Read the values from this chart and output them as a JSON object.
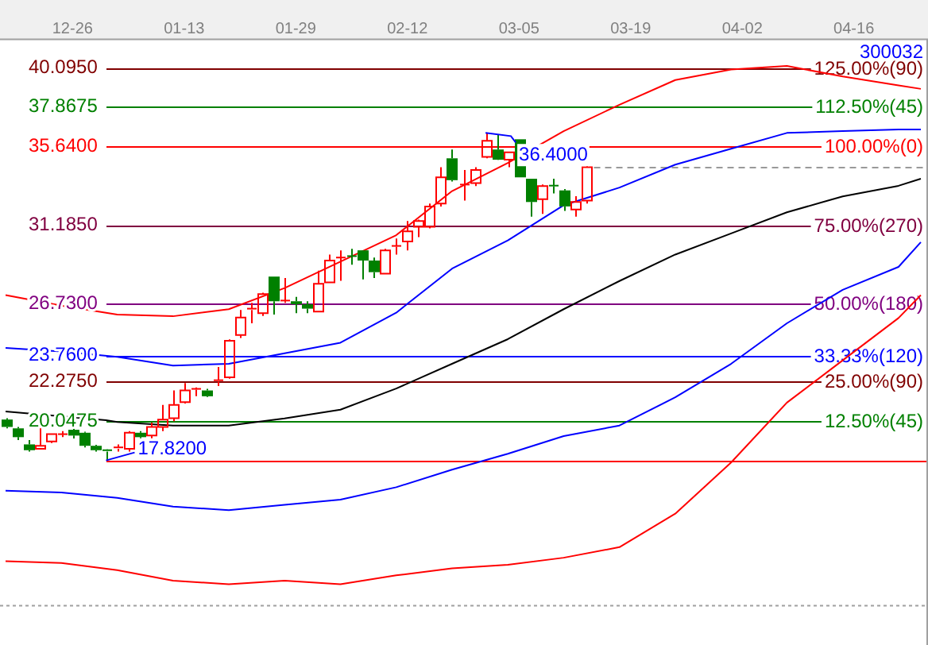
{
  "chart_data": {
    "type": "candlestick",
    "title": "300032",
    "categories": [
      null,
      null,
      null,
      null,
      null,
      null,
      "12-26",
      null,
      null,
      null,
      null,
      null,
      null,
      null,
      null,
      null,
      "01-13",
      null,
      null,
      null,
      null,
      null,
      null,
      null,
      null,
      null,
      "01-29",
      null,
      null,
      null,
      null,
      null,
      null,
      null,
      null,
      null,
      "02-12",
      null,
      null,
      null,
      null,
      null,
      null,
      null,
      null,
      null,
      "03-05",
      null,
      null,
      null,
      null,
      null,
      null,
      null,
      null,
      null,
      "03-19",
      null,
      null,
      null,
      null,
      null,
      null,
      null,
      null,
      null,
      "04-02",
      null,
      null,
      null,
      null,
      null,
      null,
      null,
      null,
      null,
      "04-16",
      null,
      null,
      null,
      null,
      null,
      null
    ],
    "ohlc": [
      [
        20.14,
        20.22,
        19.64,
        19.72
      ],
      [
        19.64,
        19.72,
        18.98,
        19.14
      ],
      [
        18.73,
        18.98,
        18.32,
        18.4
      ],
      [
        18.48,
        19.72,
        18.48,
        18.65
      ],
      [
        18.9,
        19.31,
        18.81,
        19.31
      ],
      [
        19.28,
        19.48,
        19.14,
        19.31
      ],
      [
        19.56,
        19.81,
        19.06,
        19.23
      ],
      [
        19.39,
        19.45,
        18.56,
        18.65
      ],
      [
        18.65,
        18.7,
        18.32,
        18.4
      ],
      [
        18.4,
        18.45,
        17.82,
        18.32
      ],
      [
        18.48,
        18.73,
        18.32,
        18.56
      ],
      [
        18.48,
        19.48,
        18.32,
        19.39
      ],
      [
        19.39,
        19.48,
        18.98,
        19.14
      ],
      [
        19.23,
        19.97,
        18.98,
        19.72
      ],
      [
        19.72,
        20.97,
        19.48,
        20.14
      ],
      [
        20.22,
        21.79,
        20.05,
        20.97
      ],
      [
        21.13,
        22.21,
        21.05,
        21.79
      ],
      [
        21.84,
        21.96,
        21.46,
        21.88
      ],
      [
        21.79,
        21.88,
        21.42,
        21.46
      ],
      [
        22.29,
        23.12,
        22.04,
        22.37
      ],
      [
        22.54,
        24.69,
        22.46,
        24.61
      ],
      [
        24.94,
        26.35,
        24.77,
        25.93
      ],
      [
        26.35,
        26.76,
        25.6,
        26.43
      ],
      [
        26.18,
        27.34,
        26.02,
        27.26
      ],
      [
        28.25,
        28.25,
        26.1,
        26.85
      ],
      [
        26.85,
        28.17,
        26.76,
        26.89
      ],
      [
        26.85,
        27.1,
        26.18,
        26.68
      ],
      [
        26.68,
        26.85,
        26.18,
        26.43
      ],
      [
        26.27,
        28.58,
        26.27,
        27.84
      ],
      [
        27.92,
        29.5,
        27.92,
        29.16
      ],
      [
        29.29,
        29.74,
        28.01,
        29.33
      ],
      [
        29.41,
        29.83,
        28.92,
        29.38
      ],
      [
        29.74,
        29.74,
        28.09,
        29.16
      ],
      [
        29.16,
        29.33,
        28.17,
        28.5
      ],
      [
        28.42,
        29.83,
        28.42,
        29.74
      ],
      [
        29.95,
        30.41,
        29.5,
        29.99
      ],
      [
        30.24,
        31.4,
        29.74,
        30.82
      ],
      [
        31.07,
        31.48,
        30.49,
        31.4
      ],
      [
        31.07,
        32.39,
        30.99,
        32.23
      ],
      [
        32.39,
        34.46,
        32.23,
        33.88
      ],
      [
        34.96,
        35.46,
        33.64,
        33.72
      ],
      [
        33.44,
        34.3,
        32.56,
        33.47
      ],
      [
        33.55,
        34.46,
        33.39,
        34.3
      ],
      [
        35.04,
        36.4,
        34.96,
        35.95
      ],
      [
        35.46,
        36.29,
        34.87,
        34.88
      ],
      [
        34.88,
        35.3,
        34.46,
        35.3
      ],
      [
        36.04,
        36.04,
        33.88,
        33.88
      ],
      [
        33.8,
        33.8,
        31.65,
        32.48
      ],
      [
        32.64,
        33.47,
        31.81,
        33.39
      ],
      [
        33.41,
        33.8,
        32.97,
        33.37
      ],
      [
        33.14,
        33.22,
        31.98,
        32.23
      ],
      [
        32.06,
        32.81,
        31.65,
        32.48
      ],
      [
        32.56,
        34.8,
        32.39,
        34.46
      ],
      null,
      null,
      null,
      null,
      null,
      null,
      null,
      null,
      null,
      null,
      null,
      null,
      null,
      null,
      null,
      null,
      null,
      null,
      null,
      null,
      null,
      null,
      null,
      null,
      null,
      null,
      null,
      null,
      null,
      null
    ],
    "colors": [
      "#008000",
      "#008000",
      "#008000",
      "#ff0000",
      "#ff0000",
      "#ff0000",
      "#008000",
      "#008000",
      "#008000",
      "#008000",
      "#ff0000",
      "#ff0000",
      "#008000",
      "#ff0000",
      "#ff0000",
      "#ff0000",
      "#ff0000",
      "#ff0000",
      "#008000",
      "#ff0000",
      "#ff0000",
      "#ff0000",
      "#ff0000",
      "#ff0000",
      "#008000",
      "#ff0000",
      "#008000",
      "#008000",
      "#ff0000",
      "#ff0000",
      "#ff0000",
      "#008000",
      "#008000",
      "#008000",
      "#ff0000",
      "#ff0000",
      "#ff0000",
      "#ff0000",
      "#ff0000",
      "#ff0000",
      "#008000",
      "#ff0000",
      "#ff0000",
      "#ff0000",
      "#008000",
      "#ff0000",
      "#008000",
      "#008000",
      "#ff0000",
      "#008000",
      "#008000",
      "#ff0000",
      "#ff0000",
      null,
      null,
      null,
      null,
      null,
      null,
      null,
      null,
      null,
      null,
      null,
      null,
      null,
      null,
      null,
      null,
      null,
      null,
      null,
      null,
      null,
      null,
      null,
      null,
      null,
      null,
      null,
      null,
      null,
      null
    ],
    "series": [
      {
        "type": "line",
        "color": "#ff0000",
        "values": [
          27.2,
          null,
          null,
          null,
          null,
          26.6,
          null,
          null,
          null,
          null,
          26.1,
          null,
          null,
          null,
          null,
          26.0,
          null,
          null,
          null,
          null,
          26.4,
          null,
          null,
          null,
          null,
          27.6,
          null,
          null,
          null,
          null,
          29.1,
          null,
          null,
          null,
          null,
          30.6,
          null,
          null,
          null,
          null,
          33.1,
          null,
          null,
          null,
          null,
          34.7,
          null,
          null,
          null,
          null,
          36.5,
          null,
          null,
          null,
          null,
          38.0,
          null,
          null,
          null,
          null,
          39.4,
          null,
          null,
          null,
          null,
          40.0,
          null,
          null,
          null,
          null,
          40.2,
          null,
          null,
          null,
          null,
          39.6,
          null,
          null,
          null,
          null,
          39.1,
          null,
          38.9
        ]
      },
      {
        "type": "line",
        "color": "#0000ff",
        "values": [
          24.2,
          null,
          null,
          null,
          null,
          24.0,
          null,
          null,
          null,
          null,
          23.7,
          null,
          null,
          null,
          null,
          23.2,
          null,
          null,
          null,
          null,
          23.3,
          null,
          null,
          null,
          null,
          23.9,
          null,
          null,
          null,
          null,
          24.5,
          null,
          null,
          null,
          null,
          26.2,
          null,
          null,
          null,
          null,
          28.7,
          null,
          null,
          null,
          null,
          30.3,
          null,
          null,
          null,
          null,
          32.3,
          null,
          null,
          null,
          null,
          33.3,
          null,
          null,
          null,
          null,
          34.6,
          null,
          null,
          null,
          null,
          35.5,
          null,
          null,
          null,
          null,
          36.4,
          null,
          null,
          null,
          null,
          36.5,
          null,
          null,
          null,
          null,
          36.6,
          null,
          36.6
        ]
      },
      {
        "type": "line",
        "color": "#000000",
        "values": [
          20.6,
          null,
          null,
          null,
          null,
          null,
          null,
          null,
          null,
          20.1,
          20.0,
          null,
          null,
          null,
          null,
          19.8,
          null,
          null,
          null,
          null,
          19.8,
          null,
          null,
          null,
          null,
          20.2,
          null,
          null,
          null,
          null,
          20.7,
          null,
          null,
          null,
          null,
          21.9,
          null,
          null,
          null,
          null,
          23.3,
          null,
          null,
          null,
          null,
          24.7,
          null,
          null,
          null,
          null,
          26.4,
          null,
          null,
          null,
          null,
          28.0,
          null,
          null,
          null,
          null,
          29.5,
          null,
          null,
          null,
          null,
          30.7,
          null,
          null,
          null,
          null,
          31.9,
          null,
          null,
          null,
          null,
          32.8,
          null,
          null,
          null,
          null,
          33.4,
          null,
          33.8
        ]
      },
      {
        "type": "line",
        "color": "#0000ff",
        "values": [
          16.1,
          null,
          null,
          null,
          null,
          16.0,
          null,
          null,
          null,
          null,
          15.7,
          null,
          null,
          null,
          null,
          15.2,
          null,
          null,
          null,
          null,
          15.0,
          null,
          null,
          null,
          null,
          15.3,
          null,
          null,
          null,
          null,
          15.6,
          null,
          null,
          null,
          null,
          16.3,
          null,
          null,
          null,
          null,
          17.3,
          null,
          null,
          null,
          null,
          18.2,
          null,
          null,
          null,
          null,
          19.2,
          null,
          null,
          null,
          null,
          19.8,
          null,
          null,
          null,
          null,
          21.4,
          null,
          null,
          null,
          null,
          23.3,
          null,
          null,
          null,
          null,
          25.6,
          null,
          null,
          null,
          null,
          27.5,
          null,
          null,
          null,
          null,
          28.8,
          null,
          30.2
        ]
      },
      {
        "type": "line",
        "color": "#ff0000",
        "values": [
          12.1,
          null,
          null,
          null,
          null,
          12.0,
          null,
          null,
          null,
          null,
          11.6,
          null,
          null,
          null,
          null,
          11.0,
          null,
          null,
          null,
          null,
          10.8,
          null,
          null,
          null,
          null,
          11.0,
          null,
          null,
          null,
          null,
          10.8,
          null,
          null,
          null,
          null,
          11.3,
          null,
          null,
          null,
          null,
          11.7,
          null,
          null,
          null,
          null,
          11.9,
          null,
          null,
          null,
          null,
          12.3,
          null,
          null,
          null,
          null,
          12.9,
          null,
          null,
          null,
          null,
          14.8,
          null,
          null,
          null,
          null,
          17.7,
          null,
          null,
          null,
          null,
          21.1,
          null,
          null,
          null,
          null,
          23.5,
          null,
          null,
          null,
          null,
          25.9,
          null,
          27.2
        ]
      }
    ],
    "ylim": [
      9.62,
      41.67
    ],
    "yticks": [
      {
        "value": 40.095,
        "label": "40.0950"
      },
      {
        "value": 37.8675,
        "label": "37.8675"
      },
      {
        "value": 35.64,
        "label": "35.6400"
      },
      {
        "value": 31.185,
        "label": "31.1850"
      },
      {
        "value": 26.73,
        "label": "26.7300"
      },
      {
        "value": 23.76,
        "label": "23.7600"
      },
      {
        "value": 22.275,
        "label": "22.2750"
      },
      {
        "value": 20.0475,
        "label": "20.0475"
      }
    ],
    "ref_lines": [
      {
        "axis": "y",
        "value": 40.095,
        "color": "#800000"
      },
      {
        "axis": "y",
        "value": 37.8675,
        "color": "#008000"
      },
      {
        "axis": "y",
        "value": 35.64,
        "color": "#ff0000"
      },
      {
        "axis": "y",
        "value": 31.185,
        "color": "#800040"
      },
      {
        "axis": "y",
        "value": 26.73,
        "color": "#800080"
      },
      {
        "axis": "y",
        "value": 23.76,
        "color": "#0000ff"
      },
      {
        "axis": "y",
        "value": 22.275,
        "color": "#800000"
      },
      {
        "axis": "y",
        "value": 20.0475,
        "color": "#008000"
      },
      {
        "axis": "y",
        "value": 17.82,
        "color": "#ff0000"
      },
      {
        "axis": "y",
        "value": 34.46,
        "color": "#999999",
        "line_style": "dashed"
      }
    ],
    "annotations": [
      "125.00%(90)",
      "112.50%(45)",
      "100.00%(0)",
      "75.00%(270)",
      "50.00%(180)",
      "33.33%(120)",
      "25.00%(90)",
      "12.50%(45)",
      {
        "text": "17.8200",
        "y": 17.82
      },
      {
        "text": "36.4000",
        "y": 36.4
      }
    ],
    "grid": false,
    "legend": false
  }
}
